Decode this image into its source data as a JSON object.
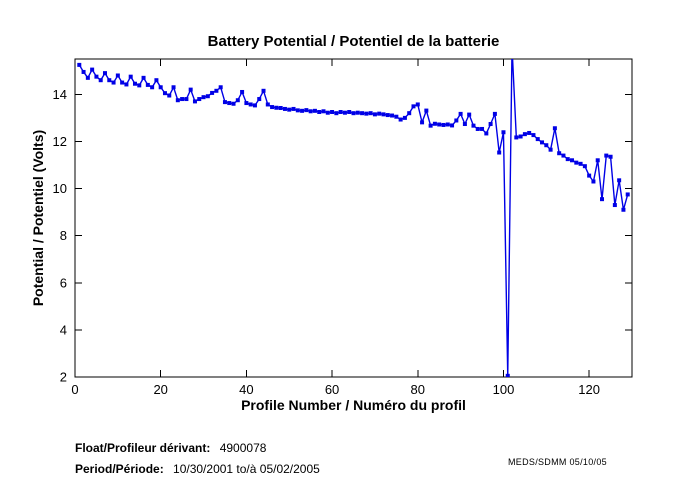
{
  "figure": {
    "title": "Battery Potential / Potentiel de la batterie",
    "xlabel": "Profile Number / Numéro du profil",
    "ylabel": "Potential / Potentiel (Volts)"
  },
  "footer": {
    "float_label": "Float/Profileur dérivant:",
    "float_value": "4900078",
    "period_label": "Period/Période:",
    "period_value": "10/30/2001  to/à  05/02/2005",
    "credit": "MEDS/SDMM  05/10/05"
  },
  "chart_data": {
    "type": "line",
    "title": "Battery Potential / Potentiel de la batterie",
    "xlabel": "Profile Number / Numéro du profil",
    "ylabel": "Potential / Potentiel (Volts)",
    "xlim": [
      0,
      130
    ],
    "ylim": [
      2,
      15.5
    ],
    "xticks": [
      0,
      20,
      40,
      60,
      80,
      100,
      120
    ],
    "yticks": [
      2,
      4,
      6,
      8,
      10,
      12,
      14
    ],
    "grid": false,
    "legend": "none",
    "line_color": "#0000E6",
    "marker": "square",
    "marker_size": 4,
    "series": [
      {
        "name": "battery-potential-volts",
        "x_start": 1,
        "x_step": 1,
        "values": [
          15.25,
          14.95,
          14.7,
          15.05,
          14.75,
          14.6,
          14.9,
          14.6,
          14.5,
          14.8,
          14.5,
          14.42,
          14.75,
          14.45,
          14.38,
          14.7,
          14.4,
          14.3,
          14.6,
          14.3,
          14.05,
          13.95,
          14.3,
          13.75,
          13.8,
          13.8,
          14.2,
          13.7,
          13.8,
          13.88,
          13.92,
          14.06,
          14.15,
          14.3,
          13.67,
          13.63,
          13.6,
          13.75,
          14.1,
          13.63,
          13.57,
          13.53,
          13.8,
          14.15,
          13.57,
          13.46,
          13.43,
          13.42,
          13.38,
          13.35,
          13.38,
          13.32,
          13.3,
          13.33,
          13.28,
          13.3,
          13.25,
          13.28,
          13.22,
          13.25,
          13.2,
          13.25,
          13.22,
          13.25,
          13.2,
          13.22,
          13.2,
          13.18,
          13.2,
          13.15,
          13.18,
          13.15,
          13.12,
          13.1,
          13.05,
          12.93,
          13.0,
          13.2,
          13.49,
          13.57,
          12.81,
          13.31,
          12.67,
          12.75,
          12.72,
          12.7,
          12.72,
          12.68,
          12.89,
          13.17,
          12.74,
          13.14,
          12.67,
          12.53,
          12.53,
          12.34,
          12.74,
          13.17,
          11.53,
          12.39,
          2.05,
          16.0,
          12.17,
          12.21,
          12.31,
          12.36,
          12.27,
          12.1,
          11.96,
          11.84,
          11.65,
          12.56,
          11.5,
          11.4,
          11.25,
          11.2,
          11.1,
          11.05,
          10.95,
          10.55,
          10.3,
          11.2,
          9.55,
          11.4,
          11.35,
          9.3,
          10.35,
          9.1,
          9.75
        ]
      }
    ]
  }
}
